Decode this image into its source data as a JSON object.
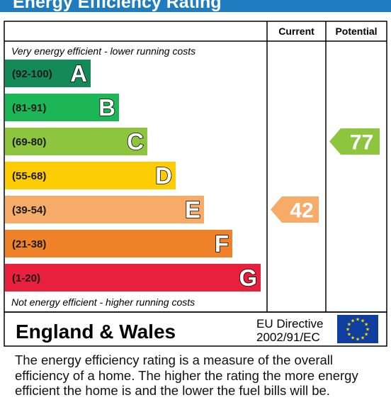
{
  "title": "Energy Efficiency Rating",
  "columns": {
    "current": "Current",
    "potential": "Potential"
  },
  "top_caption": "Very energy efficient - lower running costs",
  "bottom_caption": "Not energy efficient - higher running costs",
  "region": "England & Wales",
  "directive": {
    "line1": "EU Directive",
    "line2": "2002/91/EC"
  },
  "description": [
    "The energy efficiency rating is a measure of the overall",
    "efficiency of a home.  The higher the rating the more energy",
    "efficient the home is and the lower the fuel bills will be."
  ],
  "chart_data": {
    "type": "bar",
    "categories": [
      "A",
      "B",
      "C",
      "D",
      "E",
      "F",
      "G"
    ],
    "bands": [
      {
        "letter": "A",
        "range": "(92-100)",
        "min": 92,
        "max": 100,
        "color": "#138a58"
      },
      {
        "letter": "B",
        "range": "(81-91)",
        "min": 81,
        "max": 91,
        "color": "#1db657"
      },
      {
        "letter": "C",
        "range": "(69-80)",
        "min": 69,
        "max": 80,
        "color": "#8dc53e"
      },
      {
        "letter": "D",
        "range": "(55-68)",
        "min": 55,
        "max": 68,
        "color": "#fdcc03"
      },
      {
        "letter": "E",
        "range": "(39-54)",
        "min": 39,
        "max": 54,
        "color": "#f6ac68"
      },
      {
        "letter": "F",
        "range": "(21-38)",
        "min": 21,
        "max": 38,
        "color": "#ef8128"
      },
      {
        "letter": "G",
        "range": "(1-20)",
        "min": 1,
        "max": 20,
        "color": "#e8203b"
      }
    ],
    "current": {
      "value": 42,
      "band": "E",
      "color": "#f6ac68"
    },
    "potential": {
      "value": 77,
      "band": "C",
      "color": "#8dc53e"
    }
  }
}
